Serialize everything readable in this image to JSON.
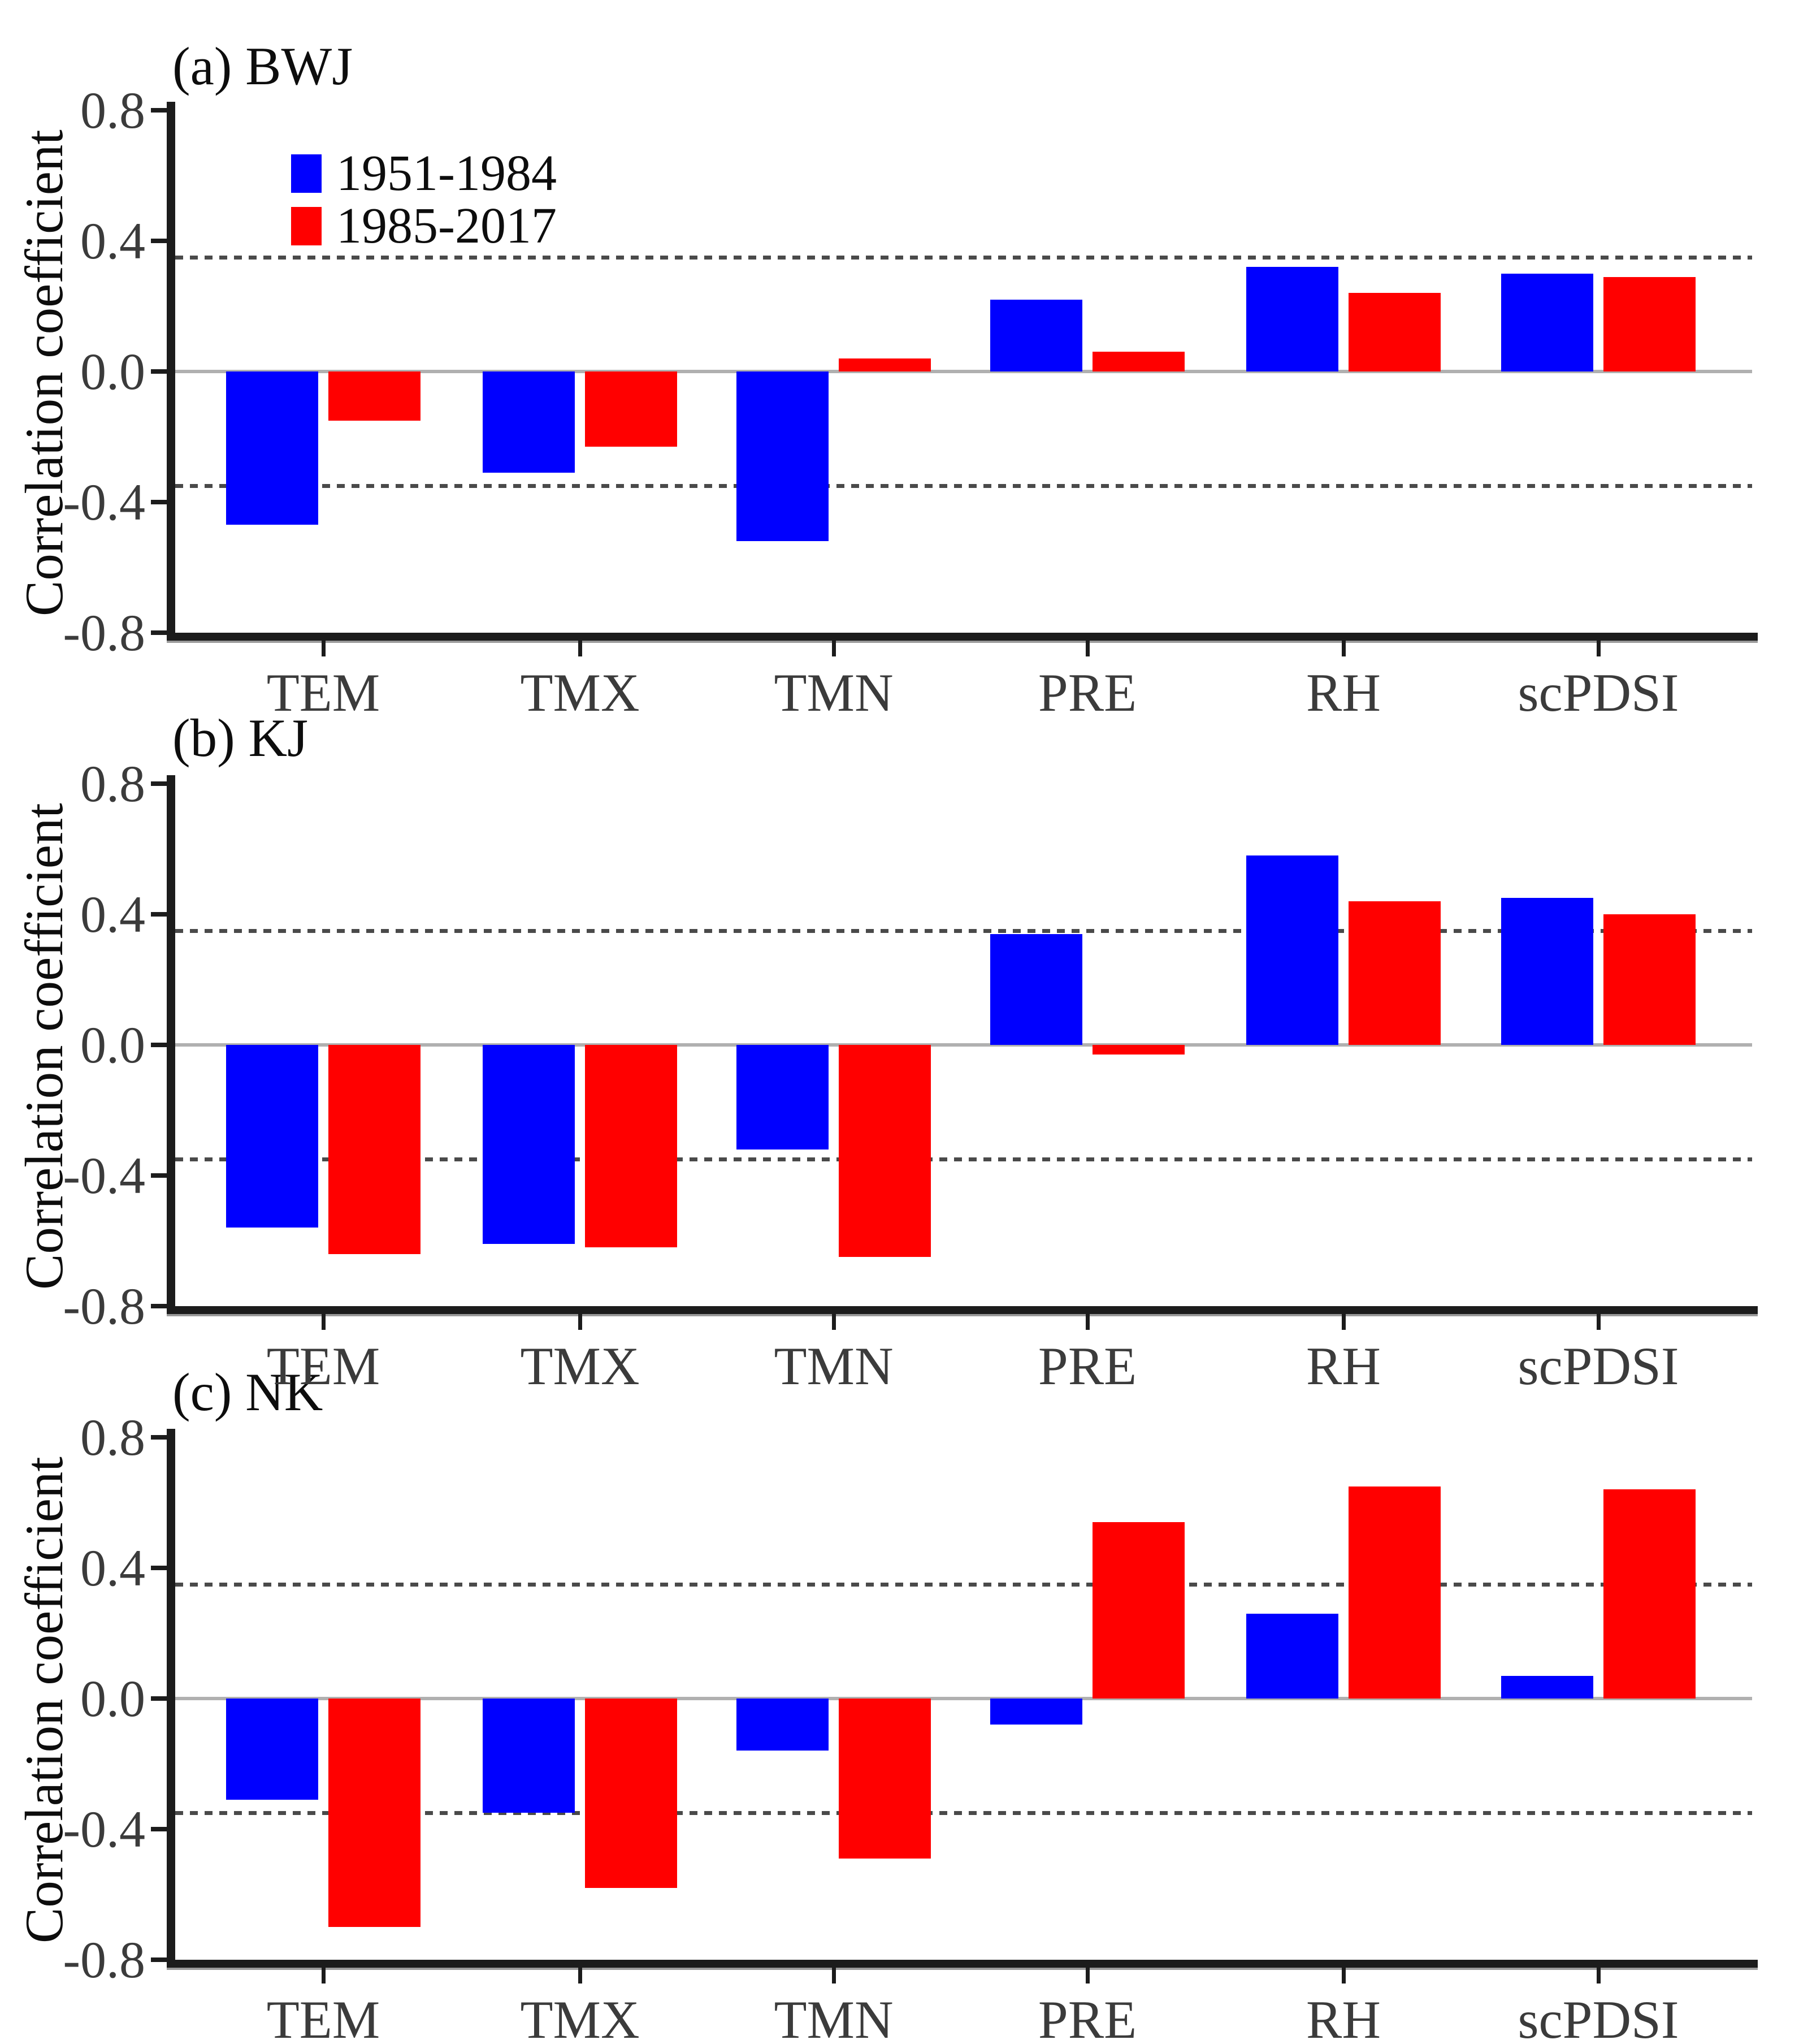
{
  "figure": {
    "ylabel": "Correlation coefficient",
    "legend": [
      {
        "label": "1951-1984",
        "color": "#0000ff"
      },
      {
        "label": "1985-2017",
        "color": "#ff0000"
      }
    ],
    "colors": {
      "series_1951_1984": "#0000ff",
      "series_1985_2017": "#ff0000",
      "zero_line": "#b0b0b0",
      "significance_line": "#4a4a4a",
      "axis": "#1c1c1c",
      "tick_text": "#3b3b3b"
    }
  },
  "chart_data": [
    {
      "type": "bar",
      "title": "(a) BWJ",
      "categories": [
        "TEM",
        "TMX",
        "TMN",
        "PRE",
        "RH",
        "scPDSI"
      ],
      "series": [
        {
          "name": "1951-1984",
          "color": "#0000ff",
          "values": [
            -0.47,
            -0.31,
            -0.52,
            0.22,
            0.32,
            0.3
          ]
        },
        {
          "name": "1985-2017",
          "color": "#ff0000",
          "values": [
            -0.15,
            -0.23,
            0.04,
            0.06,
            0.24,
            0.29
          ]
        }
      ],
      "ylabel": "Correlation coefficient",
      "ylim": [
        -0.8,
        0.8
      ],
      "ytick_labels": [
        "0.8",
        "0.4",
        "0.0",
        "-0.4",
        "-0.8"
      ],
      "ytick_values": [
        0.8,
        0.4,
        0.0,
        -0.4,
        -0.8
      ],
      "significance_lines": [
        0.35,
        -0.35
      ],
      "grid": "off",
      "legend_position": "upper-left-inside"
    },
    {
      "type": "bar",
      "title": "(b) KJ",
      "categories": [
        "TEM",
        "TMX",
        "TMN",
        "PRE",
        "RH",
        "scPDSI"
      ],
      "series": [
        {
          "name": "1951-1984",
          "color": "#0000ff",
          "values": [
            -0.56,
            -0.61,
            -0.32,
            0.34,
            0.58,
            0.45
          ]
        },
        {
          "name": "1985-2017",
          "color": "#ff0000",
          "values": [
            -0.64,
            -0.62,
            -0.65,
            -0.03,
            0.44,
            0.4
          ]
        }
      ],
      "ylabel": "Correlation coefficient",
      "ylim": [
        -0.8,
        0.8
      ],
      "ytick_labels": [
        "0.8",
        "0.4",
        "0.0",
        "-0.4",
        "-0.8"
      ],
      "ytick_values": [
        0.8,
        0.4,
        0.0,
        -0.4,
        -0.8
      ],
      "significance_lines": [
        0.35,
        -0.35
      ],
      "grid": "off",
      "legend_position": "none"
    },
    {
      "type": "bar",
      "title": "(c) NK",
      "categories": [
        "TEM",
        "TMX",
        "TMN",
        "PRE",
        "RH",
        "scPDSI"
      ],
      "series": [
        {
          "name": "1951-1984",
          "color": "#0000ff",
          "values": [
            -0.31,
            -0.35,
            -0.16,
            -0.08,
            0.26,
            0.07
          ]
        },
        {
          "name": "1985-2017",
          "color": "#ff0000",
          "values": [
            -0.7,
            -0.58,
            -0.49,
            0.54,
            0.65,
            0.64
          ]
        }
      ],
      "ylabel": "Correlation coefficient",
      "ylim": [
        -0.8,
        0.8
      ],
      "ytick_labels": [
        "0.8",
        "0.4",
        "0.0",
        "-0.4",
        "-0.8"
      ],
      "ytick_values": [
        0.8,
        0.4,
        0.0,
        -0.4,
        -0.8
      ],
      "significance_lines": [
        0.35,
        -0.35
      ],
      "grid": "off",
      "legend_position": "none"
    }
  ]
}
